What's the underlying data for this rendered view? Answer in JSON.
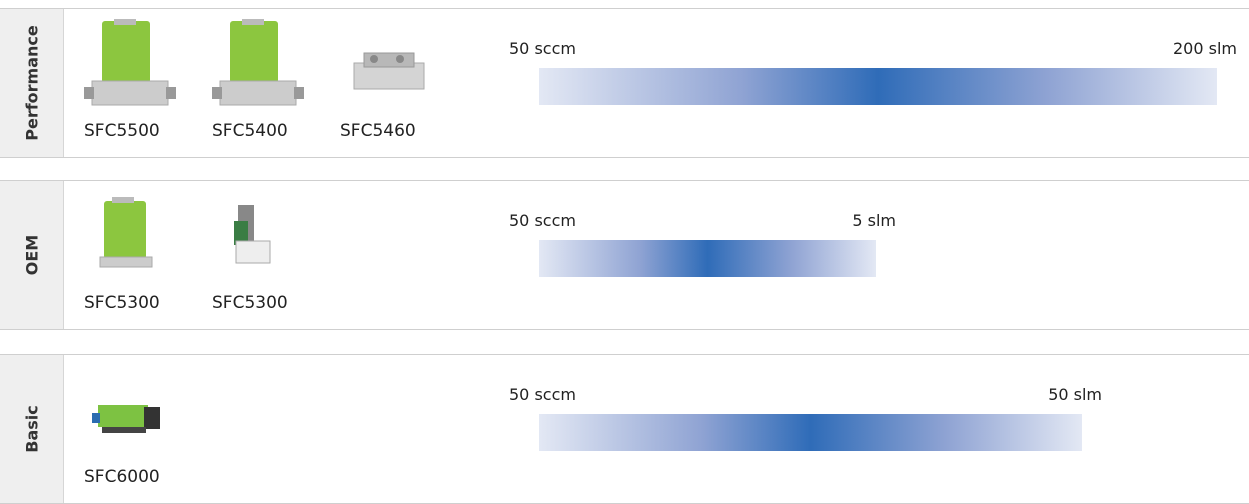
{
  "rows": [
    {
      "category": "Performance",
      "products": [
        "SFC5500",
        "SFC5400",
        "SFC5460"
      ],
      "range": {
        "min": "50 sccm",
        "max": "200 slm"
      }
    },
    {
      "category": "OEM",
      "products": [
        "SFC5300",
        "SFC5300"
      ],
      "range": {
        "min": "50 sccm",
        "max": "5 slm"
      }
    },
    {
      "category": "Basic",
      "products": [
        "SFC6000"
      ],
      "range": {
        "min": "50 sccm",
        "max": "50 slm"
      }
    }
  ]
}
